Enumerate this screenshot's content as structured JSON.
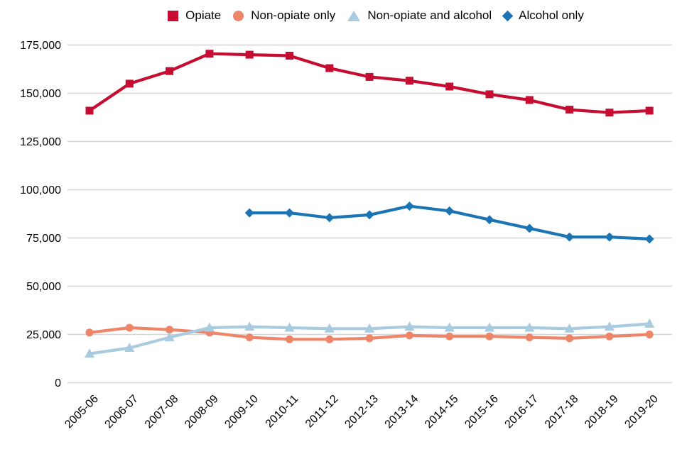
{
  "chart_data": {
    "type": "line",
    "title": "",
    "xlabel": "",
    "ylabel": "",
    "categories": [
      "2005-06",
      "2006-07",
      "2007-08",
      "2008-09",
      "2009-10",
      "2010-11",
      "2011-12",
      "2012-13",
      "2013-14",
      "2014-15",
      "2015-16",
      "2016-17",
      "2017-18",
      "2018-19",
      "2019-20"
    ],
    "series": [
      {
        "name": "Opiate",
        "marker": "square",
        "color": "#C60C30",
        "values": [
          141000,
          155000,
          161500,
          170500,
          170000,
          169500,
          163000,
          158500,
          156500,
          153500,
          149500,
          146500,
          141500,
          140000,
          141000
        ]
      },
      {
        "name": "Non-opiate only",
        "marker": "circle",
        "color": "#EE8568",
        "values": [
          26000,
          28500,
          27500,
          26000,
          23500,
          22500,
          22500,
          23000,
          24500,
          24000,
          24000,
          23500,
          23000,
          24000,
          25000
        ]
      },
      {
        "name": "Non-opiate and alcohol",
        "marker": "triangle",
        "color": "#A9CBDF",
        "values": [
          15000,
          18000,
          23500,
          28500,
          29000,
          28500,
          28000,
          28000,
          29000,
          28500,
          28500,
          28500,
          28000,
          29000,
          30500
        ]
      },
      {
        "name": "Alcohol only",
        "marker": "diamond",
        "color": "#1B74B4",
        "values": [
          null,
          null,
          null,
          null,
          88000,
          88000,
          85500,
          87000,
          91500,
          89000,
          84500,
          80000,
          75500,
          75500,
          74500
        ]
      }
    ],
    "ylim": [
      0,
      175000
    ],
    "ytick_step": 25000,
    "ytick_labels": [
      "0",
      "25,000",
      "50,000",
      "75,000",
      "100,000",
      "125,000",
      "150,000",
      "175,000"
    ],
    "grid": "horizontal",
    "legend_position": "top",
    "colors": {
      "gridline": "#D6D6D6",
      "axis_text": "#000000",
      "background": "#FFFFFF"
    }
  }
}
